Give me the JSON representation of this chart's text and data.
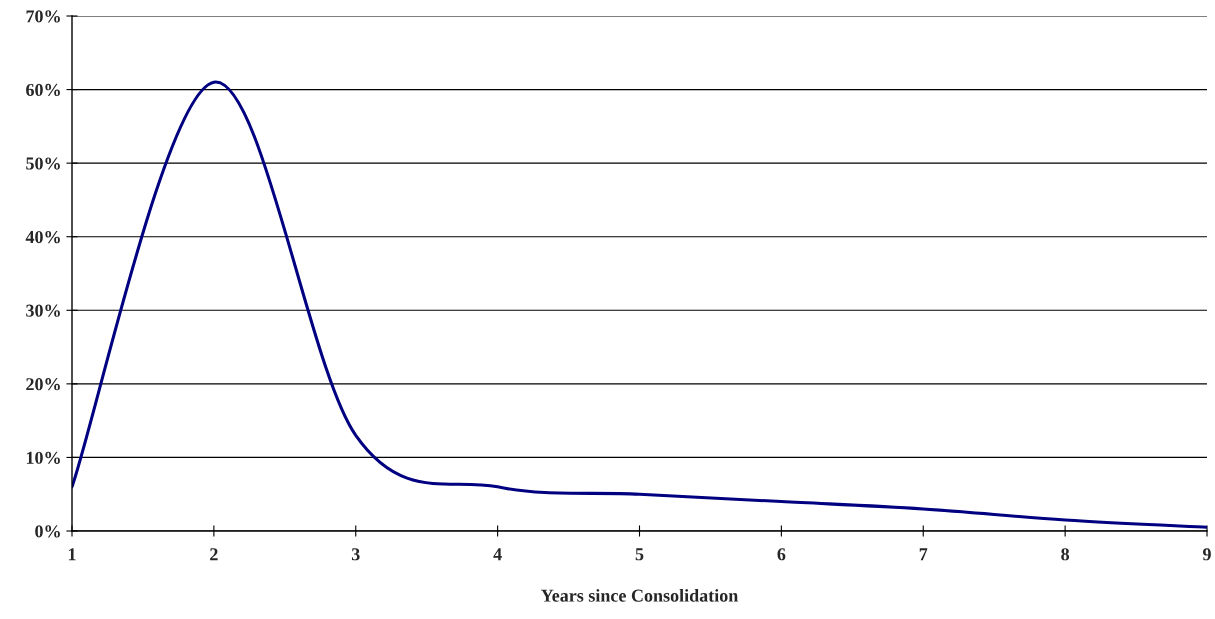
{
  "chart_data": {
    "type": "line",
    "xlabel": "Years since Consolidation",
    "x": [
      1,
      2,
      3,
      4,
      5,
      6,
      7,
      8,
      9
    ],
    "series": [
      {
        "color": "#000080",
        "values": [
          0.06,
          0.61,
          0.13,
          0.06,
          0.05,
          0.04,
          0.03,
          0.015,
          0.005
        ]
      }
    ],
    "xlim": [
      1,
      9
    ],
    "xticks": [
      1,
      2,
      3,
      4,
      5,
      6,
      7,
      8,
      9
    ],
    "ylim": [
      0,
      0.7
    ],
    "yticks": [
      {
        "value": 0,
        "label": "0%"
      },
      {
        "value": 0.1,
        "label": "10%"
      },
      {
        "value": 0.2,
        "label": "20%"
      },
      {
        "value": 0.3,
        "label": "30%"
      },
      {
        "value": 0.4,
        "label": "40%"
      },
      {
        "value": 0.5,
        "label": "50%"
      },
      {
        "value": 0.6,
        "label": "60%"
      },
      {
        "value": 0.7,
        "label": "70%"
      }
    ],
    "grid": "y",
    "legend": false,
    "marker": "none",
    "line_style": "solid"
  }
}
